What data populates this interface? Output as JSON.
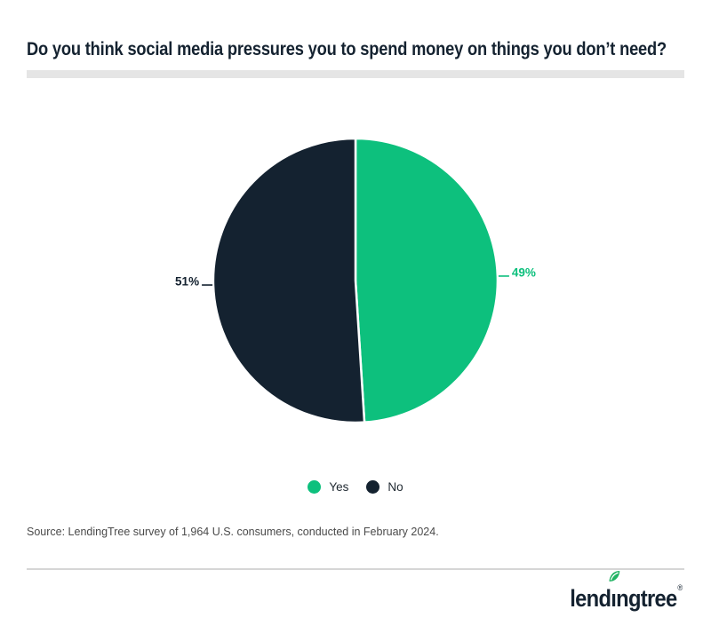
{
  "header": {
    "title": "Do you think social media pressures you to spend money on things you don’t need?"
  },
  "chart_data": {
    "type": "pie",
    "title": "Do you think social media pressures you to spend money on things you don’t need?",
    "labels": [
      "Yes",
      "No"
    ],
    "values": [
      49,
      51
    ],
    "unit": "%",
    "data_labels": [
      "49%",
      "51%"
    ],
    "colors": [
      "#0dc07d",
      "#142230"
    ],
    "start_angle_deg": 0,
    "direction": "clockwise",
    "legend_position": "bottom"
  },
  "legend": {
    "items": [
      {
        "label": "Yes",
        "color": "#0dc07d"
      },
      {
        "label": "No",
        "color": "#142230"
      }
    ]
  },
  "source": {
    "text": "Source: LendingTree survey of 1,964 U.S. consumers, conducted in February 2024."
  },
  "footer": {
    "logo": {
      "full_text": "lendingtree",
      "text_pre": "lend",
      "text_i": "ı",
      "text_post": "ngtree",
      "registered_mark": "®",
      "text_color": "#142230",
      "leaf_color": "#21b363",
      "leaf_icon": "leaf-icon"
    }
  },
  "colors": {
    "title_text": "#142230",
    "accent_green": "#0dc07d",
    "navy": "#142230",
    "title_rule": "#e5e5e5",
    "footer_rule": "#d6d6d6",
    "source_text": "#4a4a4a"
  }
}
